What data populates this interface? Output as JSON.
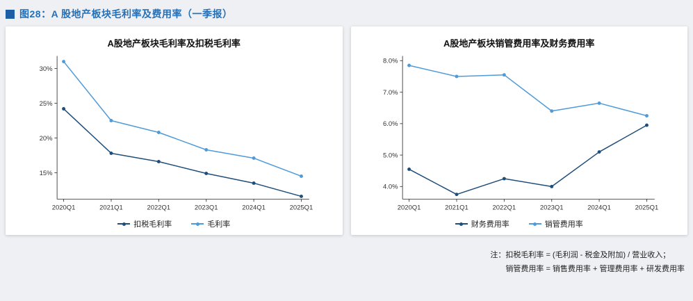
{
  "page_title": "图28：A 股地产板块毛利率及费用率（一季报）",
  "accent_color": "#2470b8",
  "marker_color": "#1d5fa6",
  "notes": [
    "注：扣税毛利率 = (毛利润 - 税金及附加) / 营业收入；",
    "销管费用率 = 销售费用率 + 管理费用率 + 研发费用率"
  ],
  "chart_data": [
    {
      "type": "line",
      "title": "A股地产板块毛利率及扣税毛利率",
      "categories": [
        "2020Q1",
        "2021Q1",
        "2022Q1",
        "2023Q1",
        "2024Q1",
        "2025Q1"
      ],
      "series": [
        {
          "name": "扣税毛利率",
          "color": "#1f4e79",
          "values": [
            24.2,
            17.8,
            16.6,
            14.9,
            13.5,
            11.6
          ]
        },
        {
          "name": "毛利率",
          "color": "#4f9bd9",
          "values": [
            31.0,
            22.5,
            20.8,
            18.3,
            17.1,
            14.5
          ]
        }
      ],
      "xlabel": "",
      "ylabel": "",
      "ylim": [
        11.2,
        31.8
      ],
      "yticks": [
        15,
        20,
        25,
        30
      ],
      "ytick_format": "percent0",
      "grid": false,
      "legend_position": "bottom"
    },
    {
      "type": "line",
      "title": "A股地产板块销管费用率及财务费用率",
      "categories": [
        "2020Q1",
        "2021Q1",
        "2022Q1",
        "2023Q1",
        "2024Q1",
        "2025Q1"
      ],
      "series": [
        {
          "name": "财务费用率",
          "color": "#1f4e79",
          "values": [
            4.55,
            3.75,
            4.25,
            4.0,
            5.1,
            5.95
          ]
        },
        {
          "name": "销管费用率",
          "color": "#4f9bd9",
          "values": [
            7.85,
            7.5,
            7.55,
            6.4,
            6.65,
            6.25
          ]
        }
      ],
      "xlabel": "",
      "ylabel": "",
      "ylim": [
        3.6,
        8.15
      ],
      "yticks": [
        4,
        5,
        6,
        7,
        8
      ],
      "ytick_format": "percent1",
      "grid": false,
      "legend_position": "bottom"
    }
  ]
}
